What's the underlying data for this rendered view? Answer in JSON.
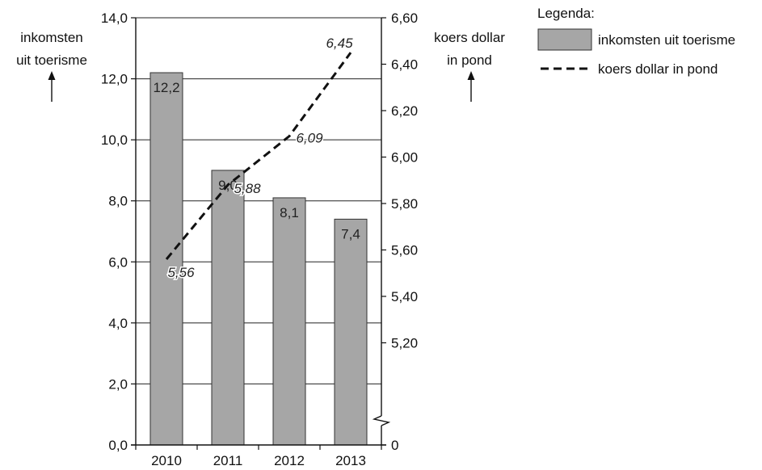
{
  "chart_data": {
    "type": "bar",
    "categories": [
      "2010",
      "2011",
      "2012",
      "2013"
    ],
    "series": [
      {
        "name": "inkomsten uit toerisme",
        "type": "bar",
        "axis": "left",
        "values": [
          12.2,
          9.0,
          8.1,
          7.4
        ],
        "labels": [
          "12,2",
          "9,0",
          "8,1",
          "7,4"
        ],
        "color": "#a6a6a6"
      },
      {
        "name": "koers dollar in pond",
        "type": "line",
        "style": "dashed",
        "axis": "right",
        "values": [
          5.56,
          5.88,
          6.09,
          6.45
        ],
        "labels": [
          "5,56",
          "5,88",
          "6,09",
          "6,45"
        ],
        "color": "#111111"
      }
    ],
    "ylabel_left": [
      "inkomsten",
      "uit toerisme"
    ],
    "ylabel_right": [
      "koers dollar",
      "in pond"
    ],
    "ylim_left": [
      0,
      14
    ],
    "ylim_right": [
      5.0,
      6.6
    ],
    "right_axis_broken": true,
    "left_ticks": [
      "0,0",
      "2,0",
      "4,0",
      "6,0",
      "8,0",
      "10,0",
      "12,0",
      "14,0"
    ],
    "right_ticks": [
      "0",
      "5,20",
      "5,40",
      "5,60",
      "5,80",
      "6,00",
      "6,20",
      "6,40",
      "6,60"
    ],
    "right_tick_values": [
      5.0,
      5.2,
      5.4,
      5.6,
      5.8,
      6.0,
      6.2,
      6.4,
      6.6
    ],
    "grid": "horizontal",
    "legend": {
      "title": "Legenda:",
      "position": "top-right",
      "items": [
        "inkomsten uit toerisme",
        "koers dollar in pond"
      ]
    }
  }
}
